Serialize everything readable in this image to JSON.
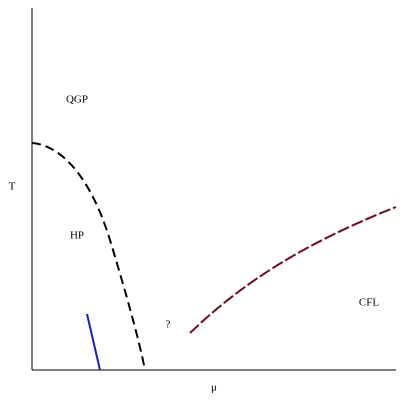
{
  "axes": {
    "y_label": "T",
    "x_label": "μ"
  },
  "regions": [
    {
      "label": "QGP"
    },
    {
      "label": "HP"
    },
    {
      "label": "?"
    },
    {
      "label": "CFL"
    }
  ]
}
